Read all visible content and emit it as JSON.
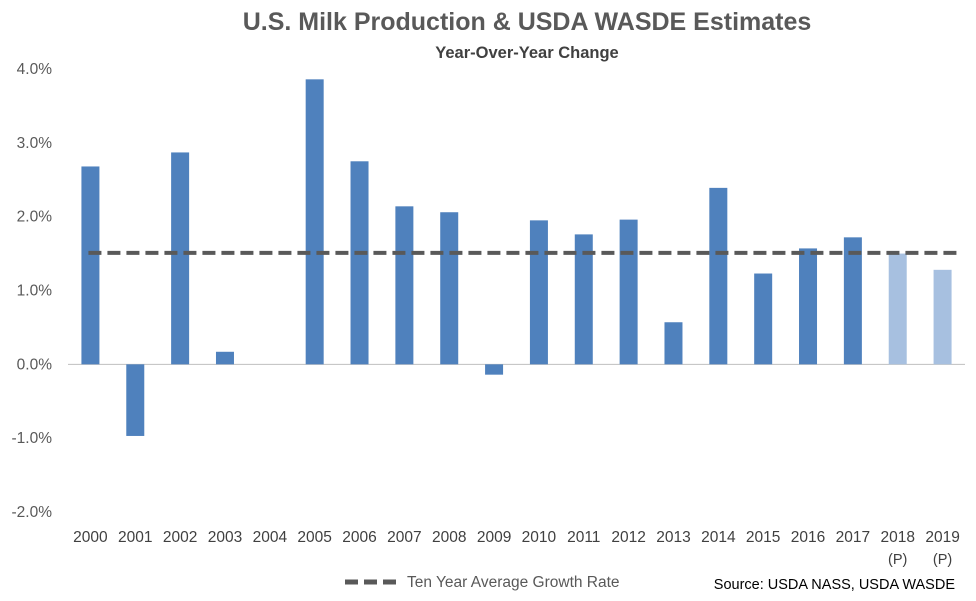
{
  "chart_data": {
    "type": "bar",
    "title": "U.S. Milk Production & USDA WASDE Estimates",
    "subtitle": "Year-Over-Year Change",
    "categories": [
      "2000",
      "2001",
      "2002",
      "2003",
      "2004",
      "2005",
      "2006",
      "2007",
      "2008",
      "2009",
      "2010",
      "2011",
      "2012",
      "2013",
      "2014",
      "2015",
      "2016",
      "2017",
      "2018",
      "2019"
    ],
    "category_sublabels": [
      "",
      "",
      "",
      "",
      "",
      "",
      "",
      "",
      "",
      "",
      "",
      "",
      "",
      "",
      "",
      "",
      "",
      "",
      "(P)",
      "(P)"
    ],
    "values": [
      2.68,
      -0.97,
      2.87,
      0.17,
      0.0,
      3.86,
      2.75,
      2.14,
      2.06,
      -0.14,
      1.95,
      1.76,
      1.96,
      0.57,
      2.39,
      1.23,
      1.57,
      1.72,
      1.5,
      1.28
    ],
    "projected": [
      false,
      false,
      false,
      false,
      false,
      false,
      false,
      false,
      false,
      false,
      false,
      false,
      false,
      false,
      false,
      false,
      false,
      false,
      true,
      true
    ],
    "ylim": [
      -2.0,
      4.0
    ],
    "yticks": [
      4.0,
      3.0,
      2.0,
      1.0,
      0.0,
      -1.0,
      -2.0
    ],
    "ytick_labels": [
      "4.0%",
      "3.0%",
      "2.0%",
      "1.0%",
      "0.0%",
      "-1.0%",
      "-2.0%"
    ],
    "reference_line": {
      "name": "Ten Year Average Growth Rate",
      "value": 1.51,
      "style": "dashed"
    },
    "legend_position": "bottom",
    "source": "Source: USDA NASS, USDA WASDE",
    "colors": {
      "bar": "#4f81bd",
      "projected_bar": "#a7c0e0",
      "reference_line": "#595959",
      "axis": "#bfbfbf"
    },
    "grid": false
  }
}
